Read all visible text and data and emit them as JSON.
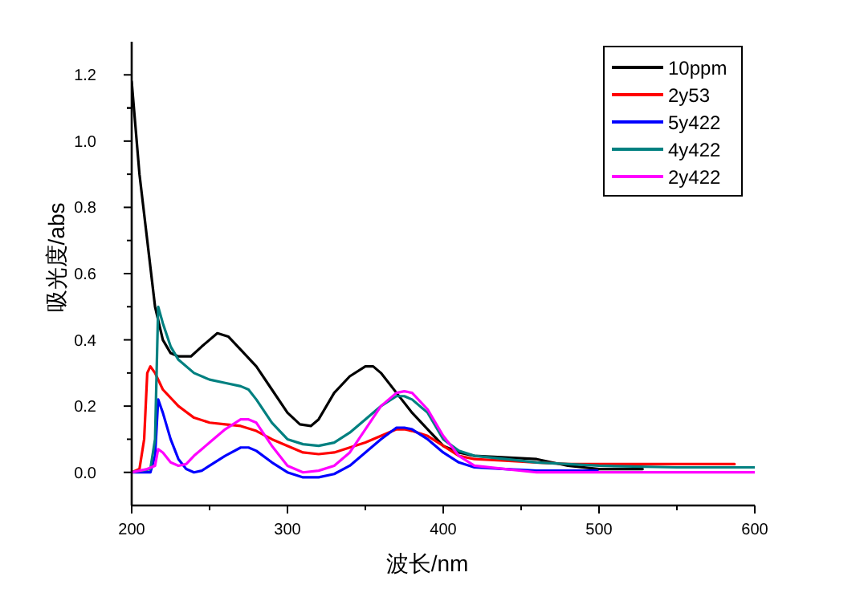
{
  "chart_data": {
    "type": "line",
    "xlabel": "波长/nm",
    "ylabel": "吸光度/abs",
    "xlim": [
      200,
      600
    ],
    "xticks": [
      200,
      300,
      400,
      500,
      600
    ],
    "ylim": [
      -0.1,
      1.3
    ],
    "yticks": [
      {
        "value": 0,
        "label": "0.0"
      },
      {
        "value": 0.2,
        "label": "0.2"
      },
      {
        "value": 0.4,
        "label": "0.4"
      },
      {
        "value": 0.6,
        "label": "0.6"
      },
      {
        "value": 0.8,
        "label": "0.8"
      },
      {
        "value": 1.0,
        "label": "1.0"
      },
      {
        "value": 1.2,
        "label": "1.2"
      }
    ],
    "grid": false,
    "legend": "top right",
    "marker": "none",
    "line_style": "solid",
    "series": [
      {
        "name": "10ppm",
        "color": "#000000",
        "x": [
          200,
          205,
          210,
          215,
          220,
          225,
          230,
          238,
          245,
          255,
          262,
          270,
          280,
          290,
          300,
          308,
          315,
          320,
          330,
          340,
          350,
          355,
          360,
          370,
          380,
          390,
          400,
          410,
          420,
          440,
          460,
          480,
          500,
          528
        ],
        "values": [
          1.18,
          0.9,
          0.7,
          0.5,
          0.4,
          0.36,
          0.35,
          0.35,
          0.38,
          0.42,
          0.41,
          0.37,
          0.32,
          0.25,
          0.18,
          0.145,
          0.14,
          0.16,
          0.24,
          0.29,
          0.32,
          0.32,
          0.3,
          0.24,
          0.18,
          0.13,
          0.08,
          0.06,
          0.05,
          0.045,
          0.04,
          0.02,
          0.01,
          0.01
        ]
      },
      {
        "name": "2y53",
        "color": "#ff0000",
        "x": [
          200,
          205,
          208,
          210,
          212,
          215,
          220,
          230,
          240,
          250,
          260,
          270,
          280,
          290,
          300,
          310,
          320,
          330,
          340,
          350,
          360,
          370,
          375,
          380,
          390,
          400,
          410,
          420,
          440,
          460,
          480,
          500,
          550,
          587
        ],
        "values": [
          0.0,
          0.01,
          0.1,
          0.3,
          0.32,
          0.3,
          0.25,
          0.2,
          0.165,
          0.15,
          0.145,
          0.14,
          0.125,
          0.1,
          0.08,
          0.06,
          0.055,
          0.06,
          0.075,
          0.09,
          0.11,
          0.13,
          0.13,
          0.125,
          0.11,
          0.08,
          0.05,
          0.04,
          0.035,
          0.03,
          0.025,
          0.025,
          0.025,
          0.025
        ]
      },
      {
        "name": "5y422",
        "color": "#0000ff",
        "x": [
          200,
          212,
          215,
          217,
          220,
          225,
          230,
          235,
          240,
          245,
          250,
          260,
          270,
          275,
          280,
          290,
          300,
          310,
          320,
          330,
          340,
          350,
          360,
          370,
          375,
          380,
          390,
          400,
          410,
          420,
          440,
          460,
          499
        ],
        "values": [
          0.0,
          0.0,
          0.05,
          0.22,
          0.18,
          0.1,
          0.04,
          0.01,
          0.0,
          0.005,
          0.02,
          0.05,
          0.075,
          0.075,
          0.065,
          0.03,
          0.0,
          -0.015,
          -0.015,
          -0.005,
          0.02,
          0.06,
          0.1,
          0.135,
          0.135,
          0.13,
          0.1,
          0.06,
          0.03,
          0.015,
          0.01,
          0.005,
          0.005
        ]
      },
      {
        "name": "4y422",
        "color": "#008080",
        "x": [
          200,
          212,
          215,
          217,
          220,
          225,
          230,
          240,
          250,
          260,
          270,
          275,
          280,
          290,
          300,
          310,
          320,
          330,
          340,
          350,
          360,
          370,
          375,
          380,
          390,
          400,
          410,
          420,
          440,
          460,
          500,
          550,
          600
        ],
        "values": [
          0.0,
          0.01,
          0.1,
          0.5,
          0.45,
          0.38,
          0.34,
          0.3,
          0.28,
          0.27,
          0.26,
          0.25,
          0.22,
          0.15,
          0.1,
          0.085,
          0.08,
          0.09,
          0.12,
          0.16,
          0.2,
          0.23,
          0.23,
          0.22,
          0.18,
          0.1,
          0.065,
          0.05,
          0.04,
          0.03,
          0.02,
          0.015,
          0.015
        ]
      },
      {
        "name": "2y422",
        "color": "#ff00ff",
        "x": [
          200,
          210,
          215,
          217,
          220,
          225,
          230,
          235,
          240,
          250,
          260,
          270,
          275,
          280,
          290,
          300,
          310,
          320,
          330,
          340,
          350,
          360,
          370,
          375,
          380,
          390,
          400,
          410,
          420,
          440,
          460,
          500,
          550,
          600
        ],
        "values": [
          0.0,
          0.01,
          0.02,
          0.07,
          0.06,
          0.03,
          0.02,
          0.025,
          0.05,
          0.09,
          0.13,
          0.16,
          0.16,
          0.15,
          0.08,
          0.02,
          0.0,
          0.005,
          0.02,
          0.06,
          0.13,
          0.2,
          0.24,
          0.245,
          0.24,
          0.19,
          0.11,
          0.05,
          0.02,
          0.01,
          0.0,
          0.0,
          0.0,
          0.0
        ]
      }
    ]
  }
}
